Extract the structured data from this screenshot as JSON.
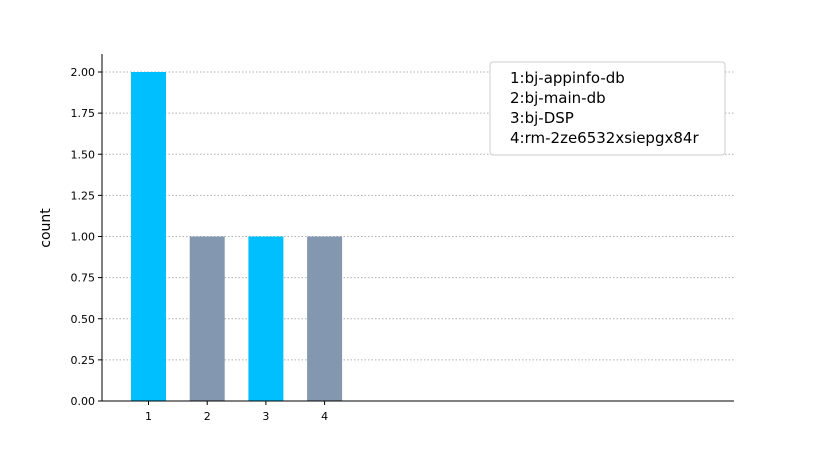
{
  "chart_data": {
    "type": "bar",
    "categories": [
      "1",
      "2",
      "3",
      "4"
    ],
    "values": [
      2,
      1,
      1,
      1
    ],
    "bar_colors": [
      "#00bfff",
      "#8497b0",
      "#00bfff",
      "#8497b0"
    ],
    "title": "",
    "xlabel": "",
    "ylabel": "count",
    "ylim": [
      0,
      2.1
    ],
    "yticks": [
      "0.00",
      "0.25",
      "0.50",
      "0.75",
      "1.00",
      "1.25",
      "1.50",
      "1.75",
      "2.00"
    ],
    "grid": "y-dotted",
    "legend_placement": "top-right",
    "legend_entries": [
      "1:bj-appinfo-db",
      "2:bj-main-db",
      "3:bj-DSP",
      "4:rm-2ze6532xsiepgx84r"
    ]
  }
}
